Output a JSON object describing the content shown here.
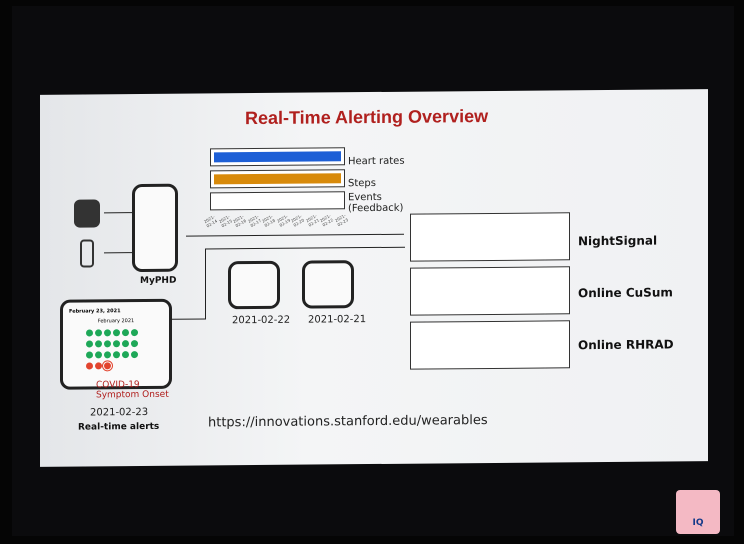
{
  "slide": {
    "title": "Real-Time Alerting Overview",
    "signals": [
      "Heart rates",
      "Steps",
      "Events\n(Feedback)"
    ],
    "event_dates": [
      "2021-02-14",
      "2021-02-15",
      "2021-02-16",
      "2021-02-17",
      "2021-02-18",
      "2021-02-19",
      "2021-02-20",
      "2021-02-21",
      "2021-02-22",
      "2021-02-23"
    ],
    "app_name": "MyPHD",
    "methods": [
      "NightSignal",
      "Online CuSum",
      "Online RHRAD"
    ],
    "phones": [
      {
        "date": "2021-02-22"
      },
      {
        "date": "2021-02-21"
      }
    ],
    "alert_phone": {
      "header": "February 23, 2021",
      "month": "February 2021",
      "annotation": "COVID-19 Symptom Onset",
      "date": "2021-02-23",
      "caption": "Real-time alerts"
    },
    "url": "https://innovations.stanford.edu/wearables"
  },
  "colors": {
    "title": "#b0201e",
    "heart": "#1d5fd6",
    "steps": "#d88a0a",
    "green": "#1ea858",
    "red": "#e2442e"
  },
  "watermark": {
    "text": "IQ"
  }
}
